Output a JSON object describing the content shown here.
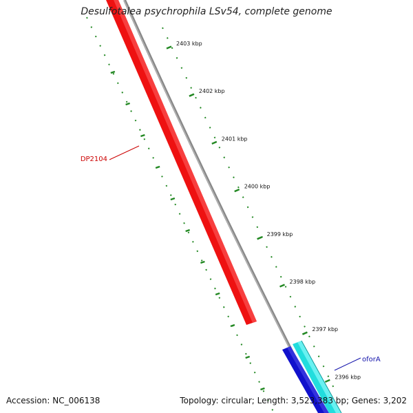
{
  "title": "Desulfotalea psychrophila LSv54, complete genome",
  "accession": "Accession: NC_006138",
  "stats": "Topology: circular; Length: 3,523,383 bp; Genes: 3,202",
  "ruler_unit": "kbp",
  "ruler_ticks": [
    {
      "value": 2403,
      "label": "2403 kbp"
    },
    {
      "value": 2402,
      "label": "2402 kbp"
    },
    {
      "value": 2401,
      "label": "2401 kbp"
    },
    {
      "value": 2400,
      "label": "2400 kbp"
    },
    {
      "value": 2399,
      "label": "2399 kbp"
    },
    {
      "value": 2398,
      "label": "2398 kbp"
    },
    {
      "value": 2397,
      "label": "2397 kbp"
    },
    {
      "value": 2396,
      "label": "2396 kbp"
    }
  ],
  "genes": [
    {
      "name": "DP2104",
      "strand": "forward",
      "color": "#ee1111",
      "label_color": "#cc0000"
    },
    {
      "name": "oforA",
      "strand": "reverse",
      "color": "#1111cc",
      "label_color": "#1111aa"
    },
    {
      "name": "",
      "strand": "reverse",
      "color": "#22dddd",
      "label_color": ""
    }
  ],
  "colors": {
    "backbone": "#888888",
    "ruler": "#228822",
    "background": "#ffffff"
  }
}
